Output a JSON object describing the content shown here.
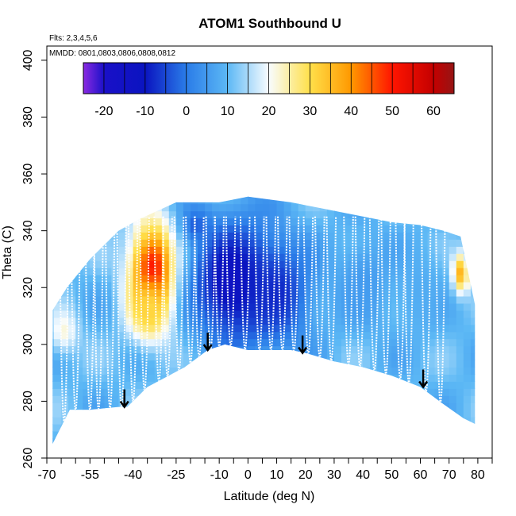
{
  "chart_data": {
    "type": "heatmap",
    "title": "ATOM1 Southbound U",
    "xlabel": "Latitude (deg N)",
    "ylabel": "Theta (C)",
    "xlim": [
      -70,
      85
    ],
    "ylim": [
      260,
      405
    ],
    "xticks": [
      -70,
      -55,
      -40,
      -25,
      -10,
      0,
      10,
      20,
      30,
      40,
      50,
      60,
      70,
      80
    ],
    "xticklabels": [
      "-70",
      "-55",
      "-40",
      "-25",
      "-10",
      "0",
      "10",
      "20",
      "30",
      "40",
      "50",
      "60",
      "70",
      "80"
    ],
    "yticks": [
      260,
      280,
      300,
      320,
      340,
      360,
      380,
      400
    ],
    "yticklabels": [
      "260",
      "280",
      "300",
      "320",
      "340",
      "360",
      "380",
      "400"
    ],
    "annotations": [
      "Flts: 2,3,4,5,6",
      "MMDD: 0801,0803,0806,0808,0812"
    ],
    "colorbar": {
      "min": -25,
      "max": 65,
      "ticks": [
        -20,
        -10,
        0,
        10,
        20,
        30,
        40,
        50,
        60
      ],
      "ticklabels": [
        "-20",
        "-10",
        "0",
        "10",
        "20",
        "30",
        "40",
        "50",
        "60"
      ],
      "stops": [
        {
          "value": -25,
          "color": "#8b2be2"
        },
        {
          "value": -20,
          "color": "#1a10c8"
        },
        {
          "value": -10,
          "color": "#0a14c0"
        },
        {
          "value": 0,
          "color": "#2a7ce8"
        },
        {
          "value": 10,
          "color": "#5cb8f5"
        },
        {
          "value": 20,
          "color": "#f8fcff"
        },
        {
          "value": 30,
          "color": "#ffe04a"
        },
        {
          "value": 40,
          "color": "#ff9800"
        },
        {
          "value": 50,
          "color": "#ff1500"
        },
        {
          "value": 60,
          "color": "#c40000"
        },
        {
          "value": 65,
          "color": "#951515"
        }
      ]
    },
    "lower_boundary": [
      {
        "lat": -68,
        "theta": 265
      },
      {
        "lat": -62,
        "theta": 277
      },
      {
        "lat": -55,
        "theta": 277
      },
      {
        "lat": -45,
        "theta": 278
      },
      {
        "lat": -42,
        "theta": 278
      },
      {
        "lat": -35,
        "theta": 285
      },
      {
        "lat": -22,
        "theta": 292
      },
      {
        "lat": -14,
        "theta": 298
      },
      {
        "lat": -8,
        "theta": 300
      },
      {
        "lat": 0,
        "theta": 298
      },
      {
        "lat": 8,
        "theta": 298
      },
      {
        "lat": 15,
        "theta": 298
      },
      {
        "lat": 20,
        "theta": 297
      },
      {
        "lat": 30,
        "theta": 294
      },
      {
        "lat": 40,
        "theta": 292
      },
      {
        "lat": 50,
        "theta": 289
      },
      {
        "lat": 60,
        "theta": 285
      },
      {
        "lat": 68,
        "theta": 279
      },
      {
        "lat": 75,
        "theta": 274
      },
      {
        "lat": 79,
        "theta": 272
      }
    ],
    "upper_boundary": [
      {
        "lat": -68,
        "theta": 312
      },
      {
        "lat": -63,
        "theta": 320
      },
      {
        "lat": -55,
        "theta": 330
      },
      {
        "lat": -45,
        "theta": 340
      },
      {
        "lat": -38,
        "theta": 344
      },
      {
        "lat": -25,
        "theta": 350
      },
      {
        "lat": -10,
        "theta": 350
      },
      {
        "lat": 0,
        "theta": 352
      },
      {
        "lat": 15,
        "theta": 350
      },
      {
        "lat": 25,
        "theta": 348
      },
      {
        "lat": 40,
        "theta": 345
      },
      {
        "lat": 50,
        "theta": 343
      },
      {
        "lat": 60,
        "theta": 342
      },
      {
        "lat": 68,
        "theta": 340
      },
      {
        "lat": 74,
        "theta": 338
      },
      {
        "lat": 79,
        "theta": 314
      }
    ],
    "features": [
      {
        "lat": -33,
        "theta": 325,
        "lat_half_width": 8,
        "theta_half_width": 18,
        "value": 55
      },
      {
        "lat": -35,
        "theta": 313,
        "lat_half_width": 6,
        "theta_half_width": 10,
        "value": 32
      },
      {
        "lat": -5,
        "theta": 322,
        "lat_half_width": 15,
        "theta_half_width": 22,
        "value": -14
      },
      {
        "lat": 10,
        "theta": 318,
        "lat_half_width": 12,
        "theta_half_width": 18,
        "value": -8
      },
      {
        "lat": -64,
        "theta": 305,
        "lat_half_width": 5,
        "theta_half_width": 8,
        "value": 22
      },
      {
        "lat": 74,
        "theta": 325,
        "lat_half_width": 3,
        "theta_half_width": 7,
        "value": 40
      },
      {
        "lat": -18,
        "theta": 342,
        "lat_half_width": 5,
        "theta_half_width": 6,
        "value": -3
      },
      {
        "lat": 40,
        "theta": 322,
        "lat_half_width": 10,
        "theta_half_width": 16,
        "value": 5
      },
      {
        "lat": 60,
        "theta": 318,
        "lat_half_width": 10,
        "theta_half_width": 16,
        "value": 8
      }
    ],
    "background_value": 10,
    "flight_profiles_lat": [
      -64,
      -60,
      -55,
      -52,
      -48,
      -44,
      -40,
      -36,
      -31,
      -28,
      -24,
      -20,
      -17,
      -13,
      -10,
      -6,
      -1,
      4,
      8,
      12,
      16,
      21,
      25,
      29,
      35,
      39,
      44,
      48,
      53,
      56,
      62,
      67
    ],
    "tropopause_arrows_lat": [
      -43,
      -14,
      19,
      61
    ],
    "tropopause_arrows_theta": [
      278,
      298,
      297,
      285
    ]
  }
}
